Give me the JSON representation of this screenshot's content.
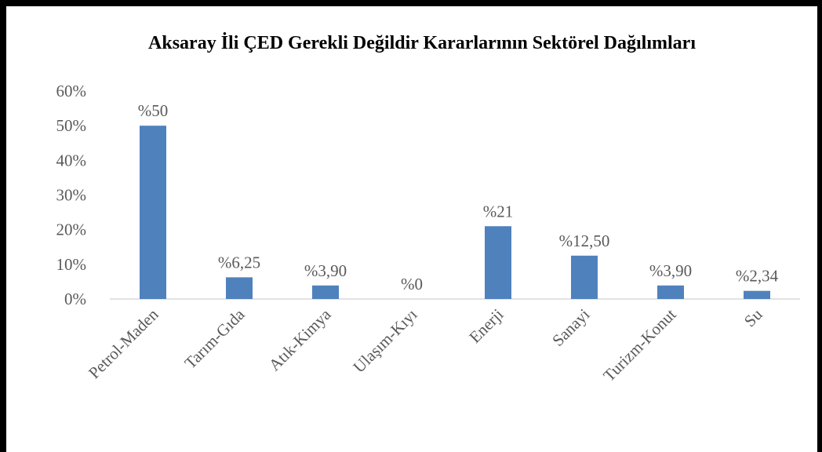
{
  "chart_data": {
    "type": "bar",
    "title": "Aksaray İli ÇED Gerekli Değildir Kararlarının Sektörel Dağılımları",
    "categories": [
      "Petrol-Maden",
      "Tarım-Gıda",
      "Atık-Kimya",
      "Ulaşım-Kıyı",
      "Enerji",
      "Sanayi",
      "Turizm-Konut",
      "Su"
    ],
    "values": [
      50,
      6.25,
      3.9,
      0,
      21,
      12.5,
      3.9,
      2.34
    ],
    "value_labels": [
      "%50",
      "%6,25",
      "%3,90",
      "%0",
      "%21",
      "%12,50",
      "%3,90",
      "%2,34"
    ],
    "color": "#4f81bd",
    "ylim": [
      0,
      60
    ],
    "yticks": [
      {
        "value": 0,
        "label": "0%"
      },
      {
        "value": 10,
        "label": "10%"
      },
      {
        "value": 20,
        "label": "20%"
      },
      {
        "value": 30,
        "label": "30%"
      },
      {
        "value": 40,
        "label": "40%"
      },
      {
        "value": 50,
        "label": "50%"
      },
      {
        "value": 60,
        "label": "60%"
      }
    ],
    "grid": false
  }
}
